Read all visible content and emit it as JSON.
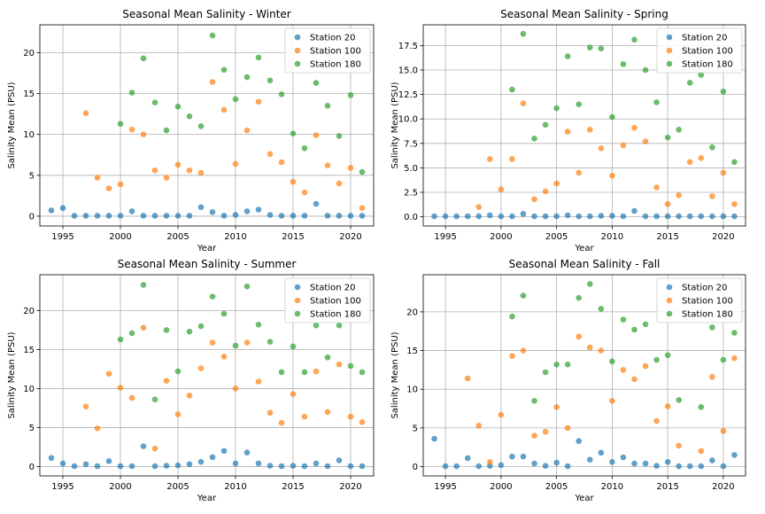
{
  "colors": {
    "Station 20": "#1f77b4",
    "Station 100": "#ff7f0e",
    "Station 180": "#2ca02c"
  },
  "chart_data": [
    {
      "type": "scatter",
      "title": "Seasonal Mean Salinity - Winter",
      "xlabel": "Year",
      "ylabel": "Salinity Mean (PSU)",
      "xlim": [
        1993,
        2022
      ],
      "ylim": [
        -1.2,
        23.4
      ],
      "xticks": [
        1995,
        2000,
        2005,
        2010,
        2015,
        2020
      ],
      "yticks": [
        0,
        5,
        10,
        15,
        20
      ],
      "ytick_labels": [
        "0",
        "5",
        "10",
        "15",
        "20"
      ],
      "grid": true,
      "legend": "top-right",
      "series": [
        {
          "name": "Station 20",
          "x": [
            1994,
            1995,
            1996,
            1997,
            1998,
            1999,
            2000,
            2001,
            2002,
            2003,
            2004,
            2005,
            2006,
            2007,
            2008,
            2009,
            2010,
            2011,
            2012,
            2013,
            2014,
            2015,
            2016,
            2017,
            2018,
            2019,
            2020,
            2021
          ],
          "y": [
            0.7,
            1.0,
            0.05,
            0.05,
            0.05,
            0.05,
            0.05,
            0.6,
            0.05,
            0.05,
            0.05,
            0.05,
            0.05,
            1.1,
            0.5,
            0.05,
            0.15,
            0.6,
            0.8,
            0.15,
            0.05,
            0.05,
            0.05,
            1.5,
            0.05,
            0.05,
            0.05,
            0.05
          ]
        },
        {
          "name": "Station 100",
          "x": [
            1997,
            1998,
            1999,
            2000,
            2001,
            2002,
            2003,
            2004,
            2005,
            2006,
            2007,
            2008,
            2009,
            2010,
            2011,
            2012,
            2013,
            2014,
            2015,
            2016,
            2017,
            2018,
            2019,
            2020,
            2021
          ],
          "y": [
            12.6,
            4.7,
            3.4,
            3.9,
            10.6,
            10.0,
            5.6,
            4.7,
            6.3,
            5.6,
            5.3,
            16.4,
            13.0,
            6.4,
            10.5,
            14.0,
            7.6,
            6.6,
            4.2,
            2.9,
            9.9,
            6.2,
            4.0,
            5.9,
            1.0
          ]
        },
        {
          "name": "Station 180",
          "x": [
            2000,
            2001,
            2002,
            2003,
            2004,
            2005,
            2006,
            2007,
            2008,
            2009,
            2010,
            2011,
            2012,
            2013,
            2014,
            2015,
            2016,
            2017,
            2018,
            2019,
            2020,
            2021
          ],
          "y": [
            11.3,
            15.1,
            19.3,
            13.9,
            10.5,
            13.4,
            12.2,
            11.0,
            22.1,
            17.9,
            14.3,
            17.0,
            19.4,
            16.6,
            14.9,
            10.1,
            8.3,
            16.3,
            13.5,
            9.8,
            14.8,
            5.4
          ]
        }
      ]
    },
    {
      "type": "scatter",
      "title": "Seasonal Mean Salinity - Spring",
      "xlabel": "Year",
      "ylabel": "Salinity Mean (PSU)",
      "xlim": [
        1993,
        2022
      ],
      "ylim": [
        -0.94,
        19.62
      ],
      "xticks": [
        1995,
        2000,
        2005,
        2010,
        2015,
        2020
      ],
      "yticks": [
        0,
        2.5,
        5,
        7.5,
        10,
        12.5,
        15,
        17.5
      ],
      "ytick_labels": [
        "0.0",
        "2.5",
        "5.0",
        "7.5",
        "10.0",
        "12.5",
        "15.0",
        "17.5"
      ],
      "grid": true,
      "legend": "top-right",
      "series": [
        {
          "name": "Station 20",
          "x": [
            1994,
            1995,
            1996,
            1997,
            1998,
            1999,
            2000,
            2001,
            2002,
            2003,
            2004,
            2005,
            2006,
            2007,
            2008,
            2009,
            2010,
            2011,
            2012,
            2013,
            2014,
            2015,
            2016,
            2017,
            2018,
            2019,
            2020,
            2021
          ],
          "y": [
            0.05,
            0.05,
            0.05,
            0.05,
            0.05,
            0.15,
            0.05,
            0.05,
            0.3,
            0.05,
            0.05,
            0.05,
            0.15,
            0.05,
            0.05,
            0.1,
            0.1,
            0.05,
            0.6,
            0.05,
            0.05,
            0.05,
            0.05,
            0.05,
            0.05,
            0.05,
            0.05,
            0.05
          ]
        },
        {
          "name": "Station 100",
          "x": [
            1998,
            1999,
            2000,
            2001,
            2002,
            2003,
            2004,
            2005,
            2006,
            2007,
            2008,
            2009,
            2010,
            2011,
            2012,
            2013,
            2014,
            2015,
            2016,
            2017,
            2018,
            2019,
            2020,
            2021
          ],
          "y": [
            1.0,
            5.9,
            2.8,
            5.9,
            11.6,
            1.8,
            2.6,
            3.4,
            8.7,
            4.5,
            8.9,
            7.0,
            4.2,
            7.3,
            9.1,
            7.7,
            3.0,
            1.3,
            2.2,
            5.6,
            6.0,
            2.1,
            4.5,
            1.3
          ]
        },
        {
          "name": "Station 180",
          "x": [
            2001,
            2002,
            2003,
            2004,
            2005,
            2006,
            2007,
            2008,
            2009,
            2010,
            2011,
            2012,
            2013,
            2014,
            2015,
            2016,
            2017,
            2018,
            2019,
            2020,
            2021
          ],
          "y": [
            13.0,
            18.7,
            8.0,
            9.4,
            11.1,
            16.4,
            11.5,
            17.3,
            17.2,
            10.2,
            15.6,
            18.1,
            15.0,
            11.7,
            8.1,
            8.9,
            13.7,
            14.5,
            7.1,
            12.8,
            5.6
          ]
        }
      ]
    },
    {
      "type": "scatter",
      "title": "Seasonal Mean Salinity - Summer",
      "xlabel": "Year",
      "ylabel": "Salinity Mean (PSU)",
      "xlim": [
        1993,
        2022
      ],
      "ylim": [
        -1.2,
        24.6
      ],
      "xticks": [
        1995,
        2000,
        2005,
        2010,
        2015,
        2020
      ],
      "yticks": [
        0,
        5,
        10,
        15,
        20
      ],
      "ytick_labels": [
        "0",
        "5",
        "10",
        "15",
        "20"
      ],
      "grid": true,
      "legend": "top-right",
      "series": [
        {
          "name": "Station 20",
          "x": [
            1994,
            1995,
            1996,
            1997,
            1998,
            1999,
            2000,
            2001,
            2002,
            2003,
            2004,
            2005,
            2006,
            2007,
            2008,
            2009,
            2010,
            2011,
            2012,
            2013,
            2014,
            2015,
            2016,
            2017,
            2018,
            2019,
            2020,
            2021
          ],
          "y": [
            1.1,
            0.4,
            0.05,
            0.3,
            0.05,
            0.7,
            0.05,
            0.05,
            2.6,
            0.05,
            0.1,
            0.15,
            0.3,
            0.6,
            1.2,
            2.0,
            0.4,
            1.8,
            0.4,
            0.1,
            0.05,
            0.1,
            0.05,
            0.4,
            0.05,
            0.8,
            0.05,
            0.05
          ]
        },
        {
          "name": "Station 100",
          "x": [
            1997,
            1998,
            1999,
            2000,
            2001,
            2002,
            2003,
            2004,
            2005,
            2006,
            2007,
            2008,
            2009,
            2010,
            2011,
            2012,
            2013,
            2014,
            2015,
            2016,
            2017,
            2018,
            2019,
            2020,
            2021
          ],
          "y": [
            7.7,
            4.9,
            11.9,
            10.1,
            8.8,
            17.8,
            2.3,
            11.0,
            6.7,
            9.1,
            12.6,
            15.9,
            14.1,
            10.0,
            15.9,
            10.9,
            6.9,
            5.6,
            9.3,
            6.4,
            12.2,
            7.0,
            13.1,
            6.4,
            5.7
          ]
        },
        {
          "name": "Station 180",
          "x": [
            2000,
            2001,
            2002,
            2003,
            2004,
            2005,
            2006,
            2007,
            2008,
            2009,
            2010,
            2011,
            2012,
            2013,
            2014,
            2015,
            2016,
            2017,
            2018,
            2019,
            2020,
            2021
          ],
          "y": [
            16.3,
            17.1,
            23.3,
            8.6,
            17.5,
            12.2,
            17.3,
            18.0,
            21.8,
            19.6,
            15.5,
            23.1,
            18.2,
            16.0,
            12.1,
            15.4,
            12.1,
            18.1,
            14.0,
            18.1,
            12.9,
            12.1
          ]
        }
      ]
    },
    {
      "type": "scatter",
      "title": "Seasonal Mean Salinity - Fall",
      "xlabel": "Year",
      "ylabel": "Salinity Mean (PSU)",
      "xlim": [
        1993,
        2022
      ],
      "ylim": [
        -1.2,
        24.8
      ],
      "xticks": [
        1995,
        2000,
        2005,
        2010,
        2015,
        2020
      ],
      "yticks": [
        0,
        5,
        10,
        15,
        20
      ],
      "ytick_labels": [
        "0",
        "5",
        "10",
        "15",
        "20"
      ],
      "grid": true,
      "legend": "top-right",
      "series": [
        {
          "name": "Station 20",
          "x": [
            1994,
            1995,
            1996,
            1997,
            1998,
            1999,
            2000,
            2001,
            2002,
            2003,
            2004,
            2005,
            2006,
            2007,
            2008,
            2009,
            2010,
            2011,
            2012,
            2013,
            2014,
            2015,
            2016,
            2017,
            2018,
            2019,
            2020,
            2021
          ],
          "y": [
            3.6,
            0.05,
            0.05,
            1.1,
            0.05,
            0.1,
            0.2,
            1.3,
            1.3,
            0.4,
            0.1,
            0.5,
            0.05,
            3.3,
            0.9,
            1.8,
            0.6,
            1.2,
            0.4,
            0.4,
            0.1,
            0.6,
            0.05,
            0.05,
            0.05,
            0.8,
            0.05,
            1.5
          ]
        },
        {
          "name": "Station 100",
          "x": [
            1997,
            1998,
            1999,
            2000,
            2001,
            2002,
            2003,
            2004,
            2005,
            2006,
            2007,
            2008,
            2009,
            2010,
            2011,
            2012,
            2013,
            2014,
            2015,
            2016,
            2017,
            2018,
            2019,
            2020,
            2021
          ],
          "y": [
            11.4,
            5.3,
            0.6,
            6.7,
            14.3,
            15.0,
            4.0,
            4.5,
            7.7,
            5.0,
            16.8,
            15.4,
            15.0,
            8.5,
            12.5,
            11.3,
            13.0,
            5.9,
            7.8,
            2.7,
            null,
            2.0,
            11.6,
            4.6,
            14.0
          ]
        },
        {
          "name": "Station 180",
          "x": [
            2001,
            2002,
            2003,
            2004,
            2005,
            2006,
            2007,
            2008,
            2009,
            2010,
            2011,
            2012,
            2013,
            2014,
            2015,
            2016,
            2018,
            2019,
            2020,
            2021
          ],
          "y": [
            19.4,
            22.1,
            8.5,
            12.2,
            13.2,
            13.2,
            21.8,
            23.6,
            20.4,
            13.6,
            19.0,
            17.7,
            18.4,
            13.8,
            14.4,
            8.6,
            7.7,
            18.0,
            13.8,
            17.3
          ]
        }
      ]
    }
  ]
}
